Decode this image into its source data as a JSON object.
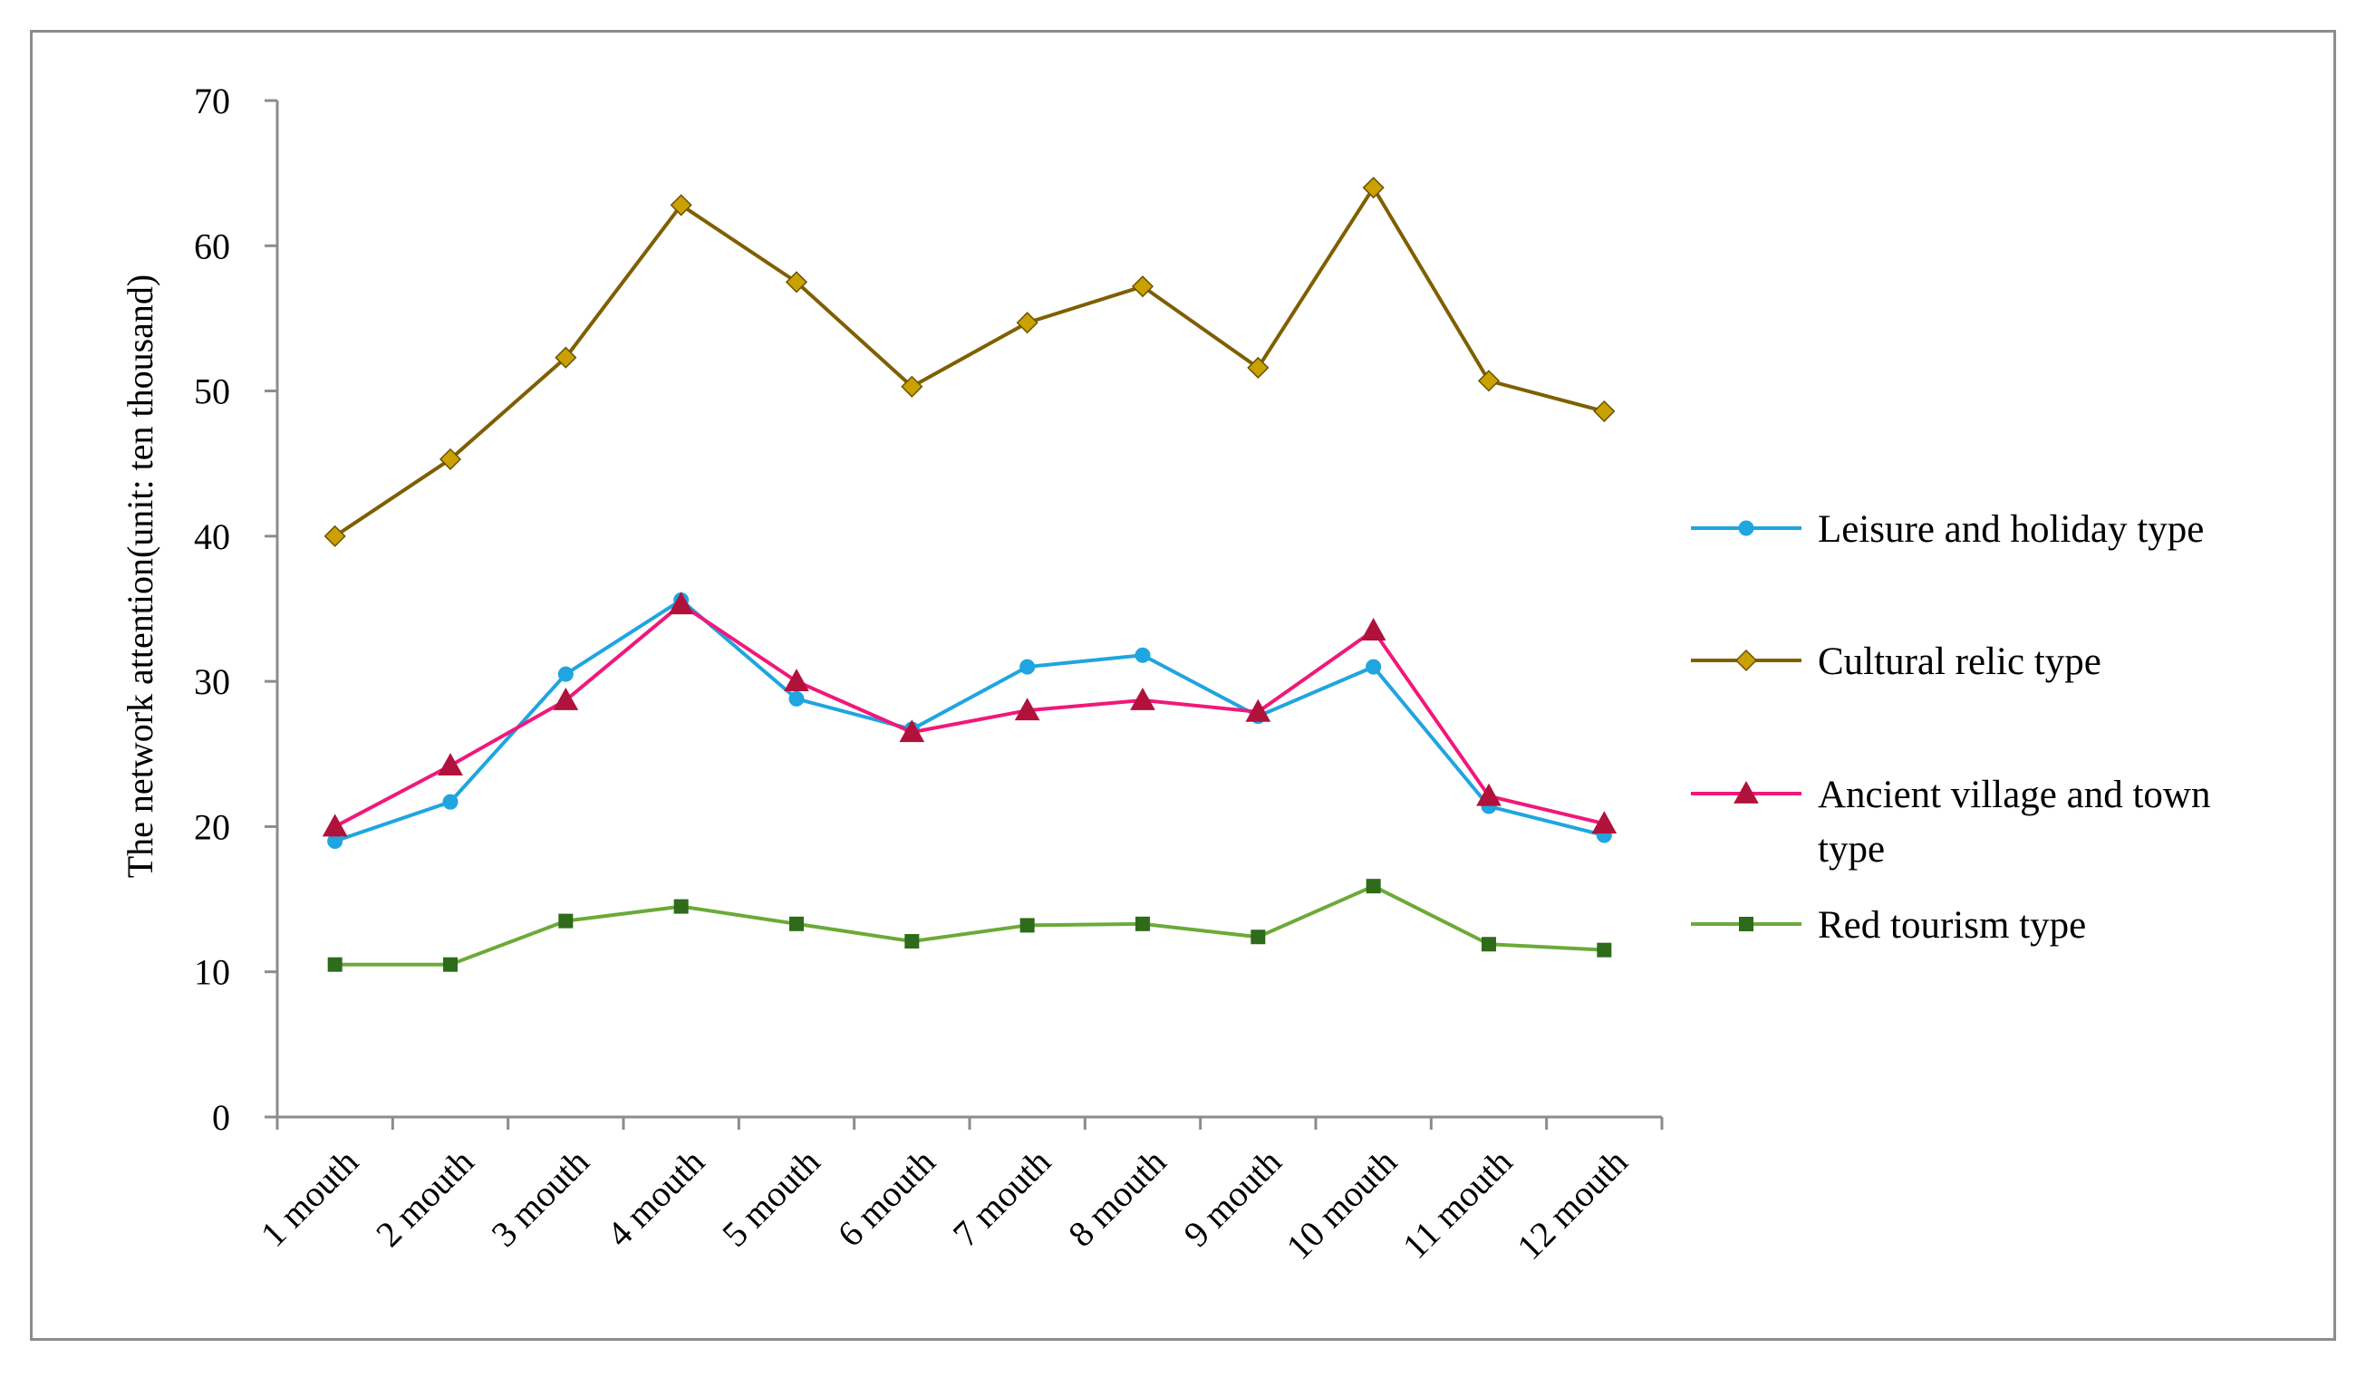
{
  "chart_data": {
    "type": "line",
    "title": "",
    "xlabel": "",
    "ylabel": "The network attention(unit: ten thousand)",
    "ylim": [
      0,
      70
    ],
    "yticks": [
      0,
      10,
      20,
      30,
      40,
      50,
      60,
      70
    ],
    "grid": false,
    "legend_position": "right",
    "categories": [
      "1 mouth",
      "2 mouth",
      "3 mouth",
      "4 mouth",
      "5 mouth",
      "6 mouth",
      "7 mouth",
      "8 mouth",
      "9 mouth",
      "10 mouth",
      "11 mouth",
      "12 mouth"
    ],
    "series": [
      {
        "name": "Leisure and holiday type",
        "legend_lines": [
          "Leisure and holiday type"
        ],
        "color": "#1FA5E0",
        "marker": "circle",
        "values": [
          19.0,
          21.7,
          30.5,
          35.6,
          28.8,
          26.7,
          31.0,
          31.8,
          27.6,
          31.0,
          21.4,
          19.4
        ]
      },
      {
        "name": "Cultural relic type",
        "legend_lines": [
          "Cultural relic type"
        ],
        "color": "#7F5F00",
        "marker_color": "#C9A100",
        "marker": "diamond",
        "values": [
          40.0,
          45.3,
          52.3,
          62.8,
          57.5,
          50.3,
          54.7,
          57.2,
          51.6,
          64.0,
          50.7,
          48.6
        ]
      },
      {
        "name": "Ancient village and town type",
        "legend_lines": [
          "Ancient village and town",
          "type"
        ],
        "color": "#F0187A",
        "marker_color": "#B0123C",
        "marker": "triangle",
        "values": [
          20.0,
          24.2,
          28.7,
          35.3,
          30.0,
          26.5,
          28.0,
          28.7,
          27.9,
          33.5,
          22.1,
          20.2
        ]
      },
      {
        "name": "Red tourism type",
        "legend_lines": [
          "Red tourism type"
        ],
        "color": "#6BAA38",
        "marker_color": "#2E6B1A",
        "marker": "square",
        "values": [
          10.5,
          10.5,
          13.5,
          14.5,
          13.3,
          12.1,
          13.2,
          13.3,
          12.4,
          15.9,
          11.9,
          11.5
        ]
      }
    ]
  }
}
